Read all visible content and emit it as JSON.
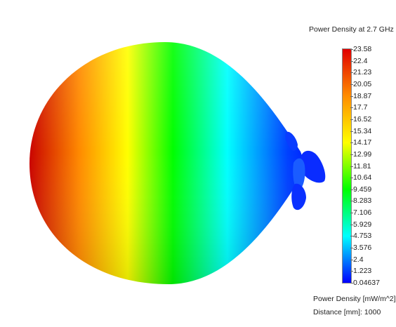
{
  "legend": {
    "title": "Power Density at 2.7 GHz",
    "ticks": [
      "23.58",
      "22.4",
      "21.23",
      "20.05",
      "18.87",
      "17.7",
      "16.52",
      "15.34",
      "14.17",
      "12.99",
      "11.81",
      "10.64",
      "9.459",
      "8.283",
      "7.106",
      "5.929",
      "4.753",
      "3.576",
      "2.4",
      "1.223",
      "0.04637"
    ],
    "units_label": "Power Density [mW/m^2]",
    "distance_label": "Distance [mm]: 1000"
  },
  "colors": {
    "max": "#e00000",
    "high": "#ff8c00",
    "mid_high": "#ffff00",
    "mid": "#00ff00",
    "mid_low": "#00ffff",
    "low": "#0000ff"
  }
}
